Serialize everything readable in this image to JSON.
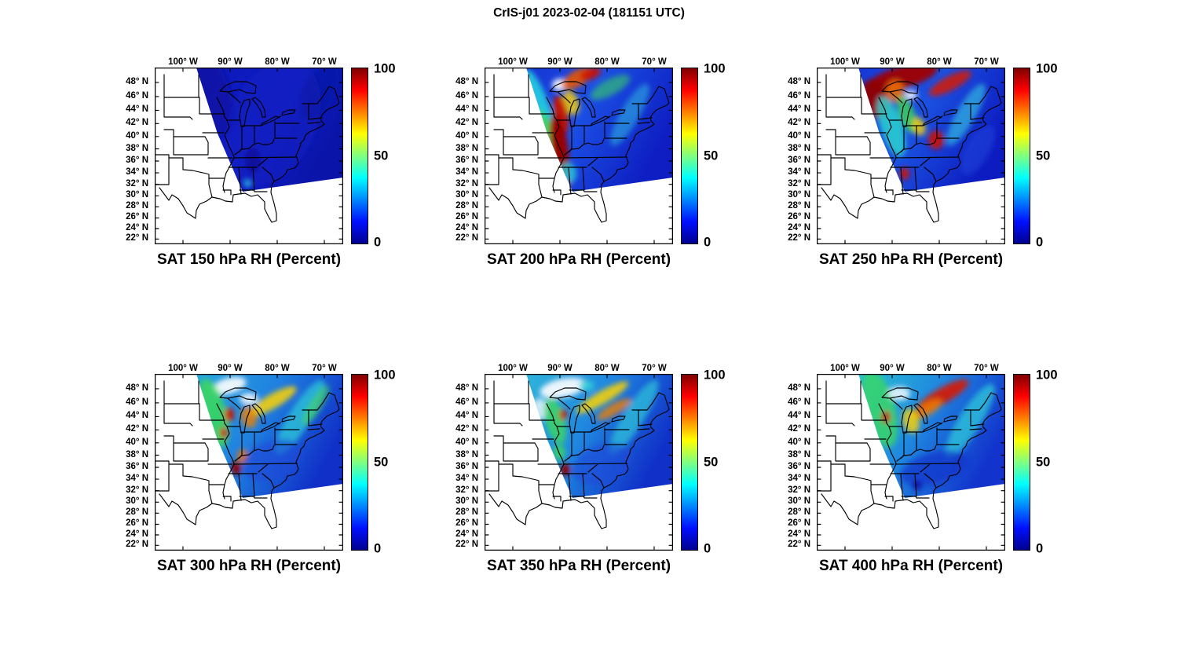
{
  "figure": {
    "title": "CrIS-j01 2023-02-04 (181151 UTC)",
    "satellite": "CrIS-j01",
    "date": "2023-02-04",
    "time_utc": "181151 UTC"
  },
  "axes": {
    "lon_ticks": [
      "100° W",
      "90° W",
      "80° W",
      "70° W"
    ],
    "lon_positions_pct": [
      15,
      40,
      65,
      90
    ],
    "lat_ticks": [
      "48° N",
      "46° N",
      "44° N",
      "42° N",
      "40° N",
      "38° N",
      "36° N",
      "34° N",
      "32° N",
      "30° N",
      "28° N",
      "26° N",
      "24° N",
      "22° N"
    ],
    "lat_positions_pct": [
      8.4,
      16.4,
      24.2,
      31.7,
      39.0,
      46.0,
      52.9,
      59.6,
      66.1,
      72.6,
      78.8,
      85.1,
      91.1,
      97.0
    ]
  },
  "colorbar": {
    "ticks": [
      "100",
      "50",
      "0"
    ],
    "min": 0,
    "max": 100,
    "colormap": "jet",
    "stops": [
      [
        0,
        "#00008f"
      ],
      [
        12.5,
        "#0010ff"
      ],
      [
        37.5,
        "#00ffff"
      ],
      [
        62.5,
        "#ffff00"
      ],
      [
        87.5,
        "#ff0000"
      ],
      [
        100,
        "#800000"
      ]
    ]
  },
  "panels": [
    {
      "title": "SAT 150 hPa RH (Percent)",
      "pressure_hPa": 150,
      "viz": {
        "base": [
          [
            0,
            "#0b17b4"
          ],
          [
            55,
            "#101fc8"
          ],
          [
            100,
            "#0a14a8"
          ]
        ],
        "blobs": [
          [
            70,
            30,
            25,
            60,
            -20,
            "#0a10a0",
            0.7
          ],
          [
            150,
            70,
            55,
            85,
            25,
            "#0d1ac0",
            0.6
          ],
          [
            125,
            118,
            10,
            16,
            0,
            "#070d85",
            0.6
          ],
          [
            118,
            148,
            4,
            4,
            0,
            "#2ac4e8",
            1
          ],
          [
            210,
            30,
            20,
            40,
            25,
            "#0a139f",
            0.5
          ]
        ]
      }
    },
    {
      "title": "SAT 200 hPa RH (Percent)",
      "pressure_hPa": 200,
      "viz": {
        "base": [
          [
            0,
            "#1734d2"
          ],
          [
            45,
            "#1b4fe4"
          ],
          [
            100,
            "#0e1ec2"
          ]
        ],
        "blobs": [
          [
            96,
            22,
            10,
            8,
            0,
            "#ffffff",
            0.9
          ],
          [
            70,
            55,
            14,
            55,
            -18,
            "#24cfe0",
            0.9
          ],
          [
            80,
            92,
            10,
            40,
            -15,
            "#3fd94f",
            0.85
          ],
          [
            110,
            45,
            10,
            16,
            -20,
            "#ffd400",
            0.8
          ],
          [
            97,
            60,
            9,
            25,
            -10,
            "#c81400",
            0.95
          ],
          [
            95,
            100,
            11,
            42,
            -8,
            "#970000",
            1
          ],
          [
            118,
            14,
            22,
            10,
            -30,
            "#e85500",
            0.9
          ],
          [
            135,
            8,
            14,
            7,
            -20,
            "#cc1100",
            0.9
          ],
          [
            160,
            25,
            28,
            10,
            -28,
            "#35d060",
            0.6
          ],
          [
            105,
            135,
            12,
            14,
            0,
            "#2ad0d8",
            0.8
          ],
          [
            103,
            148,
            5,
            5,
            0,
            "#cc2200",
            1
          ],
          [
            185,
            60,
            12,
            45,
            30,
            "#2fc8e0",
            0.5
          ]
        ]
      }
    },
    {
      "title": "SAT 250 hPa RH (Percent)",
      "pressure_hPa": 250,
      "viz": {
        "base": [
          [
            0,
            "#1638d8"
          ],
          [
            50,
            "#1a50e0"
          ],
          [
            100,
            "#0d1cc0"
          ]
        ],
        "blobs": [
          [
            110,
            12,
            45,
            14,
            -15,
            "#a00000",
            0.95
          ],
          [
            170,
            20,
            30,
            9,
            -28,
            "#d81800",
            0.85
          ],
          [
            75,
            40,
            18,
            26,
            -15,
            "#8f0000",
            0.95
          ],
          [
            100,
            30,
            12,
            14,
            0,
            "#f07000",
            0.85
          ],
          [
            120,
            35,
            8,
            6,
            0,
            "#ffffff",
            0.85
          ],
          [
            95,
            75,
            14,
            40,
            -18,
            "#2bd4d0",
            0.85
          ],
          [
            115,
            60,
            10,
            25,
            -20,
            "#3fd94f",
            0.8
          ],
          [
            130,
            75,
            8,
            12,
            -20,
            "#ffd400",
            0.8
          ],
          [
            152,
            92,
            10,
            12,
            0,
            "#d01000",
            0.9
          ],
          [
            112,
            135,
            6,
            8,
            0,
            "#d01000",
            0.9
          ],
          [
            190,
            60,
            12,
            45,
            30,
            "#35cfe2",
            0.6
          ],
          [
            205,
            105,
            15,
            35,
            30,
            "#1a40d8",
            0.6
          ]
        ]
      }
    },
    {
      "title": "SAT 300 hPa RH (Percent)",
      "pressure_hPa": 300,
      "viz": {
        "base": [
          [
            0,
            "#28a8dc"
          ],
          [
            50,
            "#1f7fe0"
          ],
          [
            100,
            "#1030c8"
          ]
        ],
        "blobs": [
          [
            95,
            15,
            22,
            10,
            -15,
            "#ffffff",
            0.9
          ],
          [
            120,
            32,
            12,
            8,
            0,
            "#ffffff",
            0.8
          ],
          [
            75,
            50,
            16,
            45,
            -15,
            "#3bd95a",
            0.85
          ],
          [
            150,
            35,
            35,
            9,
            -30,
            "#ffd400",
            0.85
          ],
          [
            120,
            55,
            10,
            14,
            -15,
            "#f08000",
            0.8
          ],
          [
            95,
            52,
            6,
            9,
            0,
            "#d01000",
            0.95
          ],
          [
            88,
            75,
            5,
            7,
            0,
            "#d01000",
            0.9
          ],
          [
            112,
            105,
            7,
            9,
            0,
            "#f07000",
            0.85
          ],
          [
            104,
            120,
            6,
            9,
            0,
            "#8f0000",
            1
          ],
          [
            185,
            55,
            14,
            55,
            32,
            "#2fd0d8",
            0.7
          ],
          [
            205,
            40,
            8,
            30,
            32,
            "#45d957",
            0.6
          ],
          [
            150,
            110,
            40,
            25,
            -20,
            "#1a47d8",
            0.6
          ]
        ]
      }
    },
    {
      "title": "SAT 350 hPa RH (Percent)",
      "pressure_hPa": 350,
      "viz": {
        "base": [
          [
            0,
            "#2fb4da"
          ],
          [
            50,
            "#1f86e0"
          ],
          [
            100,
            "#1030c8"
          ]
        ],
        "blobs": [
          [
            100,
            18,
            30,
            12,
            -12,
            "#ffffff",
            0.9
          ],
          [
            70,
            45,
            10,
            14,
            0,
            "#ffffff",
            0.75
          ],
          [
            150,
            30,
            38,
            8,
            -30,
            "#ffd400",
            0.85
          ],
          [
            165,
            45,
            25,
            7,
            -30,
            "#f08000",
            0.8
          ],
          [
            90,
            60,
            12,
            30,
            -15,
            "#3bd95a",
            0.8
          ],
          [
            100,
            52,
            5,
            7,
            0,
            "#d01000",
            0.9
          ],
          [
            95,
            100,
            8,
            10,
            0,
            "#3bd95a",
            0.8
          ],
          [
            103,
            122,
            6,
            8,
            0,
            "#8f0000",
            1
          ],
          [
            190,
            55,
            13,
            55,
            32,
            "#2fd0d8",
            0.65
          ],
          [
            150,
            115,
            40,
            25,
            -20,
            "#1a47d8",
            0.6
          ],
          [
            130,
            15,
            10,
            7,
            0,
            "#2fd0d8",
            0.8
          ]
        ]
      }
    },
    {
      "title": "SAT 400 hPa RH (Percent)",
      "pressure_hPa": 400,
      "viz": {
        "base": [
          [
            0,
            "#2bc0d2"
          ],
          [
            50,
            "#1f86e0"
          ],
          [
            100,
            "#1233cc"
          ]
        ],
        "blobs": [
          [
            80,
            45,
            20,
            50,
            -15,
            "#37d761",
            0.8
          ],
          [
            105,
            25,
            14,
            9,
            0,
            "#ffffff",
            0.8
          ],
          [
            160,
            28,
            38,
            10,
            -30,
            "#d81400",
            0.9
          ],
          [
            140,
            45,
            22,
            8,
            -30,
            "#f08000",
            0.8
          ],
          [
            120,
            60,
            10,
            16,
            -15,
            "#ffd400",
            0.8
          ],
          [
            88,
            55,
            6,
            8,
            0,
            "#d01000",
            0.85
          ],
          [
            195,
            60,
            14,
            55,
            32,
            "#2fd0d8",
            0.7
          ],
          [
            150,
            120,
            45,
            20,
            -15,
            "#1535cc",
            0.7
          ],
          [
            128,
            142,
            6,
            6,
            0,
            "#0a14a8",
            1
          ]
        ]
      }
    }
  ],
  "chart_data": [
    {
      "type": "heatmap",
      "title": "SAT 150 hPa RH (Percent)",
      "variable": "Relative Humidity",
      "units": "Percent",
      "pressure_hPa": 150,
      "x_axis": {
        "label": "Longitude",
        "tick_labels": [
          "100° W",
          "90° W",
          "80° W",
          "70° W"
        ]
      },
      "y_axis": {
        "label": "Latitude",
        "tick_labels": [
          "48° N",
          "46° N",
          "44° N",
          "42° N",
          "40° N",
          "38° N",
          "36° N",
          "34° N",
          "32° N",
          "30° N",
          "28° N",
          "26° N",
          "24° N",
          "22° N"
        ]
      },
      "colorbar": {
        "min": 0,
        "max": 100,
        "tick_labels": [
          "100",
          "50",
          "0"
        ],
        "colormap": "jet"
      },
      "summary": "Entire satellite swath shows very low RH (~0-10%, uniform dark blue) over the eastern United States; one tiny cyan spot near 88W/30N."
    },
    {
      "type": "heatmap",
      "title": "SAT 200 hPa RH (Percent)",
      "variable": "Relative Humidity",
      "units": "Percent",
      "pressure_hPa": 200,
      "x_axis": {
        "label": "Longitude",
        "tick_labels": [
          "100° W",
          "90° W",
          "80° W",
          "70° W"
        ]
      },
      "y_axis": {
        "label": "Latitude",
        "tick_labels": [
          "48° N",
          "46° N",
          "44° N",
          "42° N",
          "40° N",
          "38° N",
          "36° N",
          "34° N",
          "32° N",
          "30° N",
          "28° N",
          "26° N",
          "24° N",
          "22° N"
        ]
      },
      "colorbar": {
        "min": 0,
        "max": 100,
        "tick_labels": [
          "100",
          "50",
          "0"
        ],
        "colormap": "jet"
      },
      "summary": "Mostly low RH (0-30%); a meridional band of saturated air (90-100%) near 88-92W between 31-43N, moist patches (50-100%) over the upper Midwest and Great Lakes, red/orange spots near 48N."
    },
    {
      "type": "heatmap",
      "title": "SAT 250 hPa RH (Percent)",
      "variable": "Relative Humidity",
      "units": "Percent",
      "pressure_hPa": 250,
      "x_axis": {
        "label": "Longitude",
        "tick_labels": [
          "100° W",
          "90° W",
          "80° W",
          "70° W"
        ]
      },
      "y_axis": {
        "label": "Latitude",
        "tick_labels": [
          "48° N",
          "46° N",
          "44° N",
          "42° N",
          "40° N",
          "38° N",
          "36° N",
          "34° N",
          "32° N",
          "30° N",
          "28° N",
          "26° N",
          "24° N",
          "22° N"
        ]
      },
      "colorbar": {
        "min": 0,
        "max": 100,
        "tick_labels": [
          "100",
          "50",
          "0"
        ],
        "colormap": "jet"
      },
      "summary": "Widespread high RH (80-100%) across the northern swath (43-49N) and along 88-92W; bands of 30-60% through the Ohio Valley; scattered red spots near 34N; low RH (0-20%) over the Southeast and Atlantic."
    },
    {
      "type": "heatmap",
      "title": "SAT 300 hPa RH (Percent)",
      "variable": "Relative Humidity",
      "units": "Percent",
      "pressure_hPa": 300,
      "x_axis": {
        "label": "Longitude",
        "tick_labels": [
          "100° W",
          "90° W",
          "80° W",
          "70° W"
        ]
      },
      "y_axis": {
        "label": "Latitude",
        "tick_labels": [
          "48° N",
          "46° N",
          "44° N",
          "42° N",
          "40° N",
          "38° N",
          "36° N",
          "34° N",
          "32° N",
          "30° N",
          "28° N",
          "26° N",
          "24° N",
          "22° N"
        ]
      },
      "colorbar": {
        "min": 0,
        "max": 100,
        "tick_labels": [
          "100",
          "50",
          "0"
        ],
        "colormap": "jet"
      },
      "summary": "Mottled field of 20-70% RH with scattered saturated (80-100%) spots near 90W; missing-data gaps in the north; diagonal moist/dry streaks over the Great Lakes; drier (0-30%) toward the southeast edge."
    },
    {
      "type": "heatmap",
      "title": "SAT 350 hPa RH (Percent)",
      "variable": "Relative Humidity",
      "units": "Percent",
      "pressure_hPa": 350,
      "x_axis": {
        "label": "Longitude",
        "tick_labels": [
          "100° W",
          "90° W",
          "80° W",
          "70° W"
        ]
      },
      "y_axis": {
        "label": "Latitude",
        "tick_labels": [
          "48° N",
          "46° N",
          "44° N",
          "42° N",
          "40° N",
          "38° N",
          "36° N",
          "34° N",
          "32° N",
          "30° N",
          "28° N",
          "26° N",
          "24° N",
          "22° N"
        ]
      },
      "colorbar": {
        "min": 0,
        "max": 100,
        "tick_labels": [
          "100",
          "50",
          "0"
        ],
        "colormap": "jet"
      },
      "summary": "Similar mottled pattern of 20-70% RH with yellow/orange streaks (60-80%) across the Great Lakes, isolated saturated spots near 88W/34N, many missing-data gaps in the north, low RH to the southeast."
    },
    {
      "type": "heatmap",
      "title": "SAT 400 hPa RH (Percent)",
      "variable": "Relative Humidity",
      "units": "Percent",
      "pressure_hPa": 400,
      "x_axis": {
        "label": "Longitude",
        "tick_labels": [
          "100° W",
          "90° W",
          "80° W",
          "70° W"
        ]
      },
      "y_axis": {
        "label": "Latitude",
        "tick_labels": [
          "48° N",
          "46° N",
          "44° N",
          "42° N",
          "40° N",
          "38° N",
          "36° N",
          "34° N",
          "32° N",
          "30° N",
          "28° N",
          "26° N",
          "24° N",
          "22° N"
        ]
      },
      "colorbar": {
        "min": 0,
        "max": 100,
        "tick_labels": [
          "100",
          "50",
          "0"
        ],
        "colormap": "jet"
      },
      "summary": "Moist band (40-80%) from the upper Midwest across the Great Lakes with red streaks (80-100%) to the northeast; RH decreases to 0-30% toward the southeastern portion of the swath."
    }
  ]
}
